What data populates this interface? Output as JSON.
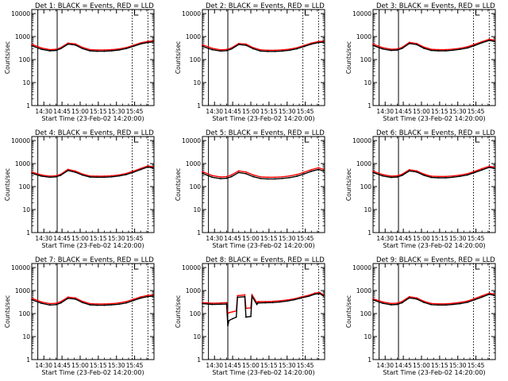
{
  "figure": {
    "panel_title_suffix": ": BLACK = Events, RED = LLD",
    "xlabel": "Start Time (23-Feb-02 14:20:00)",
    "ylabel": "Counts/sec",
    "colors": {
      "events": "#000000",
      "lld": "#ff0000",
      "axes": "#000000",
      "background": "#ffffff"
    }
  },
  "chart_data": [
    {
      "type": "line",
      "title": "Det 1: BLACK = Events, RED = LLD",
      "xlabel": "Start Time (23-Feb-02 14:20:00)",
      "ylabel": "Counts/sec",
      "x_unit": "minutes after 14:20",
      "xlim": [
        0,
        101
      ],
      "ylim": [
        1,
        15000
      ],
      "y_scale": "log",
      "x_tick_labels": [
        "14:30",
        "14:45",
        "15:00",
        "15:15",
        "15:30",
        "15:45"
      ],
      "y_tick_labels": [
        "1",
        "10",
        "100",
        "1000",
        "10000"
      ],
      "vertical_lines": {
        "solid": [
          5,
          21
        ],
        "dotted": [
          83,
          96
        ]
      },
      "x": [
        0,
        8,
        15,
        20,
        24,
        30,
        36,
        42,
        48,
        54,
        60,
        66,
        72,
        78,
        84,
        90,
        96,
        100
      ],
      "series": [
        {
          "label": "LLD",
          "color": "#ff0000",
          "values": [
            460,
            320,
            270,
            280,
            330,
            520,
            480,
            340,
            270,
            260,
            260,
            270,
            290,
            330,
            420,
            530,
            620,
            640
          ]
        },
        {
          "label": "Events",
          "color": "#000000",
          "values": [
            400,
            280,
            240,
            250,
            300,
            470,
            430,
            300,
            240,
            230,
            230,
            240,
            260,
            300,
            380,
            480,
            560,
            580
          ]
        }
      ]
    },
    {
      "type": "line",
      "title": "Det 2: BLACK = Events, RED = LLD",
      "xlabel": "Start Time (23-Feb-02 14:20:00)",
      "ylabel": "Counts/sec",
      "x_unit": "minutes after 14:20",
      "xlim": [
        0,
        101
      ],
      "ylim": [
        1,
        15000
      ],
      "y_scale": "log",
      "x_tick_labels": [
        "14:30",
        "14:45",
        "15:00",
        "15:15",
        "15:30",
        "15:45"
      ],
      "y_tick_labels": [
        "1",
        "10",
        "100",
        "1000",
        "10000"
      ],
      "vertical_lines": {
        "solid": [
          5,
          21
        ],
        "dotted": [
          83,
          96
        ]
      },
      "x": [
        0,
        8,
        15,
        20,
        24,
        30,
        36,
        42,
        48,
        54,
        60,
        66,
        72,
        78,
        84,
        90,
        96,
        100
      ],
      "series": [
        {
          "label": "LLD",
          "color": "#ff0000",
          "values": [
            440,
            310,
            265,
            275,
            320,
            500,
            470,
            330,
            265,
            255,
            255,
            265,
            285,
            325,
            410,
            520,
            610,
            630
          ]
        },
        {
          "label": "Events",
          "color": "#000000",
          "values": [
            380,
            270,
            235,
            245,
            290,
            450,
            420,
            295,
            235,
            225,
            225,
            235,
            255,
            295,
            370,
            470,
            550,
            570
          ]
        }
      ]
    },
    {
      "type": "line",
      "title": "Det 3: BLACK = Events, RED = LLD",
      "xlabel": "Start Time (23-Feb-02 14:20:00)",
      "ylabel": "Counts/sec",
      "x_unit": "minutes after 14:20",
      "xlim": [
        0,
        101
      ],
      "ylim": [
        1,
        15000
      ],
      "y_scale": "log",
      "x_tick_labels": [
        "14:30",
        "14:45",
        "15:00",
        "15:15",
        "15:30",
        "15:45"
      ],
      "y_tick_labels": [
        "1",
        "10",
        "100",
        "1000",
        "10000"
      ],
      "vertical_lines": {
        "solid": [
          5,
          21
        ],
        "dotted": [
          83,
          96
        ]
      },
      "x": [
        0,
        8,
        15,
        20,
        24,
        30,
        36,
        42,
        48,
        54,
        60,
        66,
        72,
        78,
        84,
        90,
        96,
        100
      ],
      "series": [
        {
          "label": "LLD",
          "color": "#ff0000",
          "values": [
            470,
            330,
            280,
            290,
            340,
            560,
            500,
            350,
            280,
            270,
            270,
            285,
            310,
            360,
            460,
            600,
            760,
            700
          ]
        },
        {
          "label": "Events",
          "color": "#000000",
          "values": [
            410,
            290,
            250,
            260,
            305,
            500,
            450,
            310,
            250,
            240,
            240,
            255,
            280,
            320,
            410,
            540,
            680,
            620
          ]
        }
      ]
    },
    {
      "type": "line",
      "title": "Det 4: BLACK = Events, RED = LLD",
      "xlabel": "Start Time (23-Feb-02 14:20:00)",
      "ylabel": "Counts/sec",
      "x_unit": "minutes after 14:20",
      "xlim": [
        0,
        101
      ],
      "ylim": [
        1,
        15000
      ],
      "y_scale": "log",
      "x_tick_labels": [
        "14:30",
        "14:45",
        "15:00",
        "15:15",
        "15:30",
        "15:45"
      ],
      "y_tick_labels": [
        "1",
        "10",
        "100",
        "1000",
        "10000"
      ],
      "vertical_lines": {
        "solid": [
          5,
          21
        ],
        "dotted": [
          83,
          96
        ]
      },
      "x": [
        0,
        8,
        15,
        20,
        24,
        30,
        36,
        42,
        48,
        54,
        60,
        66,
        72,
        78,
        84,
        90,
        96,
        100
      ],
      "series": [
        {
          "label": "LLD",
          "color": "#ff0000",
          "values": [
            430,
            320,
            285,
            295,
            345,
            560,
            470,
            350,
            290,
            285,
            285,
            295,
            320,
            370,
            470,
            610,
            790,
            720
          ]
        },
        {
          "label": "Events",
          "color": "#000000",
          "values": [
            380,
            285,
            255,
            265,
            310,
            500,
            420,
            315,
            260,
            255,
            255,
            265,
            290,
            330,
            420,
            550,
            710,
            650
          ]
        }
      ]
    },
    {
      "type": "line",
      "title": "Det 5: BLACK = Events, RED = LLD",
      "xlabel": "Start Time (23-Feb-02 14:20:00)",
      "ylabel": "Counts/sec",
      "x_unit": "minutes after 14:20",
      "xlim": [
        0,
        101
      ],
      "ylim": [
        1,
        15000
      ],
      "y_scale": "log",
      "x_tick_labels": [
        "14:30",
        "14:45",
        "15:00",
        "15:15",
        "15:30",
        "15:45"
      ],
      "y_tick_labels": [
        "1",
        "10",
        "100",
        "1000",
        "10000"
      ],
      "vertical_lines": {
        "solid": [
          5,
          21
        ],
        "dotted": [
          83,
          96
        ]
      },
      "x": [
        0,
        8,
        15,
        20,
        24,
        30,
        36,
        42,
        48,
        54,
        60,
        66,
        72,
        78,
        84,
        90,
        96,
        100
      ],
      "series": [
        {
          "label": "LLD",
          "color": "#ff0000",
          "values": [
            450,
            300,
            260,
            270,
            320,
            480,
            430,
            320,
            265,
            255,
            255,
            265,
            290,
            330,
            420,
            540,
            660,
            560
          ]
        },
        {
          "label": "Events",
          "color": "#000000",
          "values": [
            380,
            255,
            220,
            230,
            270,
            410,
            365,
            270,
            225,
            215,
            215,
            225,
            245,
            280,
            355,
            460,
            560,
            470
          ]
        }
      ]
    },
    {
      "type": "line",
      "title": "Det 6: BLACK = Events, RED = LLD",
      "xlabel": "Start Time (23-Feb-02 14:20:00)",
      "ylabel": "Counts/sec",
      "x_unit": "minutes after 14:20",
      "xlim": [
        0,
        101
      ],
      "ylim": [
        1,
        15000
      ],
      "y_scale": "log",
      "x_tick_labels": [
        "14:30",
        "14:45",
        "15:00",
        "15:15",
        "15:30",
        "15:45"
      ],
      "y_tick_labels": [
        "1",
        "10",
        "100",
        "1000",
        "10000"
      ],
      "vertical_lines": {
        "solid": [
          5,
          21
        ],
        "dotted": [
          83,
          96
        ]
      },
      "x": [
        0,
        8,
        15,
        20,
        24,
        30,
        36,
        42,
        48,
        54,
        60,
        66,
        72,
        78,
        84,
        90,
        96,
        100
      ],
      "series": [
        {
          "label": "LLD",
          "color": "#ff0000",
          "values": [
            470,
            330,
            285,
            295,
            345,
            540,
            480,
            350,
            285,
            275,
            275,
            290,
            315,
            360,
            460,
            600,
            760,
            700
          ]
        },
        {
          "label": "Events",
          "color": "#000000",
          "values": [
            410,
            290,
            250,
            260,
            305,
            480,
            430,
            310,
            250,
            240,
            240,
            255,
            280,
            320,
            410,
            530,
            680,
            620
          ]
        }
      ]
    },
    {
      "type": "line",
      "title": "Det 7: BLACK = Events, RED = LLD",
      "xlabel": "Start Time (23-Feb-02 14:20:00)",
      "ylabel": "Counts/sec",
      "x_unit": "minutes after 14:20",
      "xlim": [
        0,
        101
      ],
      "ylim": [
        1,
        15000
      ],
      "y_scale": "log",
      "x_tick_labels": [
        "14:30",
        "14:45",
        "15:00",
        "15:15",
        "15:30",
        "15:45"
      ],
      "y_tick_labels": [
        "1",
        "10",
        "100",
        "1000",
        "10000"
      ],
      "vertical_lines": {
        "solid": [
          5,
          21
        ],
        "dotted": [
          83,
          96
        ]
      },
      "x": [
        0,
        8,
        15,
        20,
        24,
        30,
        36,
        42,
        48,
        54,
        60,
        66,
        72,
        78,
        84,
        90,
        96,
        100
      ],
      "series": [
        {
          "label": "LLD",
          "color": "#ff0000",
          "values": [
            460,
            320,
            270,
            280,
            330,
            520,
            480,
            340,
            270,
            260,
            260,
            270,
            290,
            330,
            420,
            530,
            620,
            640
          ]
        },
        {
          "label": "Events",
          "color": "#000000",
          "values": [
            400,
            280,
            235,
            245,
            290,
            460,
            425,
            300,
            240,
            230,
            230,
            240,
            255,
            290,
            370,
            470,
            550,
            570
          ]
        }
      ]
    },
    {
      "type": "line",
      "title": "Det 8: BLACK = Events, RED = LLD",
      "xlabel": "Start Time (23-Feb-02 14:20:00)",
      "ylabel": "Counts/sec",
      "x_unit": "minutes after 14:20",
      "xlim": [
        0,
        101
      ],
      "ylim": [
        1,
        15000
      ],
      "y_scale": "log",
      "x_tick_labels": [
        "14:30",
        "14:45",
        "15:00",
        "15:15",
        "15:30",
        "15:45"
      ],
      "y_tick_labels": [
        "1",
        "10",
        "100",
        "1000",
        "10000"
      ],
      "vertical_lines": {
        "solid": [
          5,
          21
        ],
        "dotted": [
          83,
          96
        ]
      },
      "x": [
        0,
        8,
        15,
        20,
        21,
        22,
        25,
        28,
        29,
        35,
        36,
        40,
        41,
        45,
        46,
        52,
        58,
        64,
        70,
        76,
        82,
        88,
        93,
        97,
        100
      ],
      "series": [
        {
          "label": "LLD",
          "color": "#ff0000",
          "values": [
            300,
            280,
            290,
            300,
            100,
            110,
            120,
            130,
            600,
            650,
            170,
            175,
            650,
            300,
            330,
            330,
            340,
            360,
            390,
            440,
            530,
            630,
            780,
            820,
            650
          ]
        },
        {
          "label": "Events",
          "color": "#000000",
          "values": [
            270,
            250,
            255,
            260,
            30,
            50,
            60,
            70,
            510,
            540,
            70,
            75,
            560,
            250,
            290,
            295,
            300,
            320,
            350,
            400,
            480,
            570,
            700,
            740,
            580
          ]
        }
      ]
    },
    {
      "type": "line",
      "title": "Det 9: BLACK = Events, RED = LLD",
      "xlabel": "Start Time (23-Feb-02 14:20:00)",
      "ylabel": "Counts/sec",
      "x_unit": "minutes after 14:20",
      "xlim": [
        0,
        101
      ],
      "ylim": [
        1,
        15000
      ],
      "y_scale": "log",
      "x_tick_labels": [
        "14:30",
        "14:45",
        "15:00",
        "15:15",
        "15:30",
        "15:45"
      ],
      "y_tick_labels": [
        "1",
        "10",
        "100",
        "1000",
        "10000"
      ],
      "vertical_lines": {
        "solid": [
          5,
          21
        ],
        "dotted": [
          83,
          96
        ]
      },
      "x": [
        0,
        8,
        15,
        20,
        24,
        30,
        36,
        42,
        48,
        54,
        60,
        66,
        72,
        78,
        84,
        90,
        96,
        100
      ],
      "series": [
        {
          "label": "LLD",
          "color": "#ff0000",
          "values": [
            440,
            320,
            275,
            285,
            335,
            540,
            480,
            345,
            275,
            265,
            265,
            280,
            305,
            350,
            450,
            590,
            770,
            700
          ]
        },
        {
          "label": "Events",
          "color": "#000000",
          "values": [
            390,
            280,
            240,
            250,
            295,
            480,
            430,
            305,
            245,
            235,
            235,
            250,
            270,
            310,
            400,
            520,
            690,
            620
          ]
        }
      ]
    }
  ]
}
